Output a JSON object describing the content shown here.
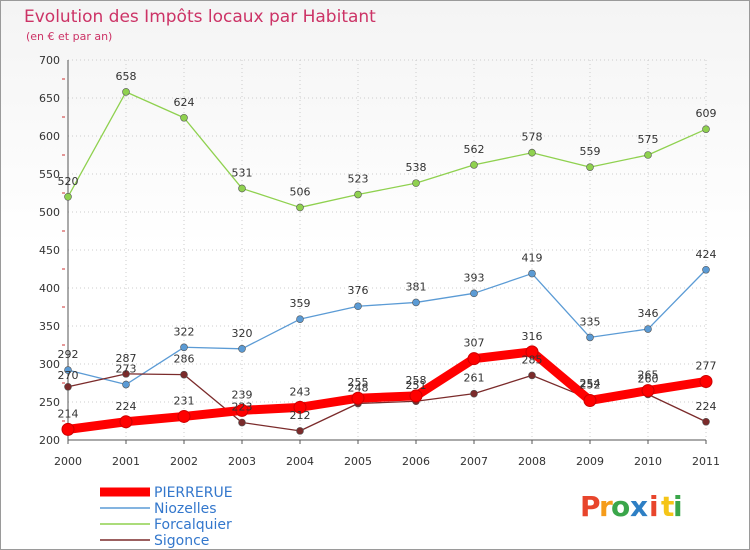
{
  "chart_data": {
    "type": "line",
    "title": "Evolution des Impôts locaux par Habitant",
    "subtitle": "(en € et par an)",
    "x": [
      "2000",
      "2001",
      "2002",
      "2003",
      "2004",
      "2005",
      "2006",
      "2007",
      "2008",
      "2009",
      "2010",
      "2011"
    ],
    "ylim": [
      200,
      700
    ],
    "yticks": [
      200,
      250,
      300,
      350,
      400,
      450,
      500,
      550,
      600,
      650,
      700
    ],
    "grid": true,
    "legend_position": "bottom-left",
    "series": [
      {
        "name": "PIERRERUE",
        "color": "#ff0000",
        "values": [
          214,
          224,
          231,
          239,
          243,
          255,
          258,
          307,
          316,
          252,
          265,
          277
        ]
      },
      {
        "name": "Niozelles",
        "color": "#5b9bd5",
        "values": [
          292,
          273,
          322,
          320,
          359,
          376,
          381,
          393,
          419,
          335,
          346,
          424
        ]
      },
      {
        "name": "Forcalquier",
        "color": "#8fd14f",
        "values": [
          520,
          658,
          624,
          531,
          506,
          523,
          538,
          562,
          578,
          559,
          575,
          609
        ]
      },
      {
        "name": "Sigonce",
        "color": "#7b2b2b",
        "values": [
          270,
          287,
          286,
          223,
          212,
          248,
          251,
          261,
          285,
          254,
          260,
          224
        ]
      }
    ]
  },
  "logo": {
    "letters": [
      "P",
      "r",
      "o",
      "x",
      "i",
      "t",
      "i"
    ],
    "colors": [
      "#e8452c",
      "#f59c1a",
      "#3aa64a",
      "#2e7fc4",
      "#e8452c",
      "#f5c518",
      "#3aa64a"
    ]
  }
}
